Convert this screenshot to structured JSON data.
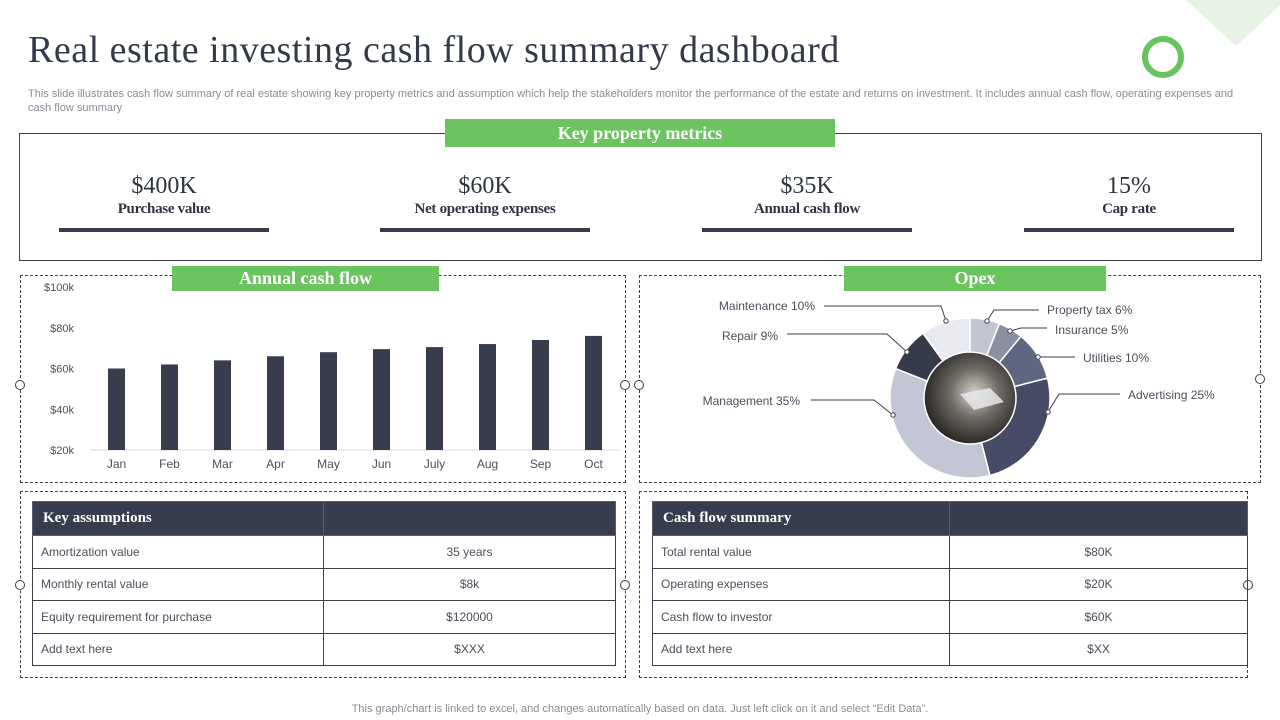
{
  "header": {
    "title": "Real estate investing cash flow summary dashboard",
    "subtitle": "This slide illustrates cash flow summary of real estate  showing key property metrics and assumption which help the stakeholders monitor the performance of the estate and returns on investment. It includes annual cash flow, operating expenses and cash flow summary"
  },
  "key_metrics": {
    "label": "Key property metrics",
    "items": [
      {
        "value": "$400K",
        "label": "Purchase value"
      },
      {
        "value": "$60K",
        "label": "Net operating expenses"
      },
      {
        "value": "$35K",
        "label": "Annual cash flow"
      },
      {
        "value": "15%",
        "label": "Cap rate"
      }
    ]
  },
  "annual_cash_flow": {
    "label": "Annual cash flow"
  },
  "opex": {
    "label": "Opex"
  },
  "chart_data": [
    {
      "type": "bar",
      "categories": [
        "Jan",
        "Feb",
        "Mar",
        "Apr",
        "May",
        "Jun",
        "July",
        "Aug",
        "Sep",
        "Oct"
      ],
      "values": [
        60,
        62,
        64,
        66,
        68,
        69.5,
        70.5,
        72,
        74,
        76
      ],
      "yticks": [
        "$20k",
        "$40k",
        "$60k",
        "$80k",
        "$100k"
      ],
      "ylim": [
        20,
        100
      ],
      "color": "#383d4d",
      "grid": false
    },
    {
      "type": "pie",
      "categories": [
        "Property tax 6%",
        "Insurance 5%",
        "Utilities 10%",
        "Advertising 25%",
        "Management 35%",
        "Repair 9%",
        "Maintenance 10%"
      ],
      "values": [
        6,
        5,
        10,
        25,
        35,
        9,
        10
      ],
      "colors": [
        "#c3c5d0",
        "#8a8fa1",
        "#5f6680",
        "#464c65",
        "#c3c6d4",
        "#363b4b",
        "#e9eaef"
      ]
    }
  ],
  "key_assumptions": {
    "header": "Key assumptions",
    "rows": [
      {
        "label": "Amortization value",
        "value": "35 years"
      },
      {
        "label": "Monthly rental value",
        "value": "$8k"
      },
      {
        "label": "Equity requirement  for purchase",
        "value": "$120000"
      },
      {
        "label": "Add text here",
        "value": "$XXX"
      }
    ]
  },
  "cash_flow_summary": {
    "header": "Cash flow summary",
    "rows": [
      {
        "label": "Total rental value",
        "value": "$80K"
      },
      {
        "label": "Operating  expenses",
        "value": "$20K"
      },
      {
        "label": "Cash flow to investor",
        "value": "$60K"
      },
      {
        "label": "Add text here",
        "value": "$XX"
      }
    ]
  },
  "footer": {
    "note": "This graph/chart is linked to excel,  and changes automatically based on data. Just left click on it and select “Edit Data”."
  },
  "colors": {
    "accent_green": "#6bc45f",
    "dark_navy": "#383d4d"
  }
}
